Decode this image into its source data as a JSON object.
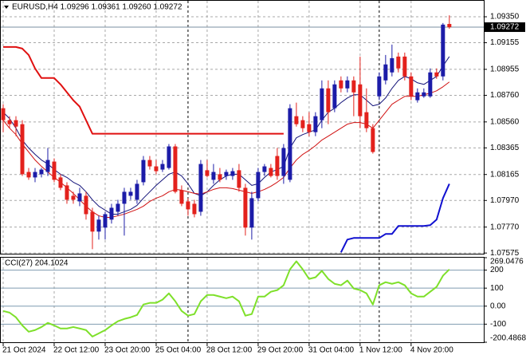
{
  "chart_data": [
    {
      "type": "candlestick",
      "title": "EURUSD,H4  1.09296 1.09361 1.09260 1.09272",
      "open": [
        1.08663,
        1.08573,
        1.08573,
        1.08543,
        1.08184,
        1.08143,
        1.08167,
        1.08184,
        1.08262,
        1.08143,
        1.08083,
        1.08005,
        1.07963,
        1.08005,
        1.07885,
        1.07736,
        1.07766,
        1.07826,
        1.07885,
        1.07945,
        1.08005,
        1.07975,
        1.08107,
        1.08274,
        1.08226,
        1.08202,
        1.08214,
        1.08376,
        1.08047,
        1.07963,
        1.07945,
        1.07885,
        1.08197,
        1.08125,
        1.08167,
        1.08154,
        1.08154,
        1.08197,
        1.08065,
        1.07766,
        1.07987,
        1.08184,
        1.08214,
        1.08304,
        1.08154,
        1.08125,
        1.08603,
        1.08573,
        1.08543,
        1.08483,
        1.08573,
        1.08812,
        1.08663,
        1.08872,
        1.08812,
        1.08872,
        1.08842,
        1.08633,
        1.08513,
        1.08752,
        1.08872,
        1.08932,
        1.09051,
        1.09051,
        1.08902,
        1.08723,
        1.08752,
        1.08752,
        1.08932,
        1.08902,
        1.09296
      ],
      "high": [
        1.08693,
        1.08603,
        1.08603,
        1.08573,
        1.08214,
        1.08214,
        1.08214,
        1.08364,
        1.08286,
        1.08167,
        1.08107,
        1.08035,
        1.08065,
        1.08035,
        1.07915,
        1.07855,
        1.07885,
        1.07945,
        1.07975,
        1.08065,
        1.08065,
        1.08125,
        1.08304,
        1.08304,
        1.08274,
        1.08274,
        1.08394,
        1.08394,
        1.08083,
        1.07987,
        1.07975,
        1.08274,
        1.08274,
        1.08244,
        1.08214,
        1.08202,
        1.08214,
        1.08244,
        1.08095,
        1.08035,
        1.08214,
        1.08244,
        1.08244,
        1.08364,
        1.08394,
        1.08693,
        1.08705,
        1.08603,
        1.08633,
        1.08633,
        1.08872,
        1.08872,
        1.08872,
        1.08902,
        1.08902,
        1.08902,
        1.09051,
        1.08812,
        1.08543,
        1.08932,
        1.09063,
        1.09141,
        1.09081,
        1.09081,
        1.08932,
        1.08812,
        1.08812,
        1.08962,
        1.08962,
        1.09303,
        1.09361
      ],
      "low": [
        1.08483,
        1.08513,
        1.08453,
        1.08154,
        1.08125,
        1.08107,
        1.08143,
        1.08154,
        1.08107,
        1.08047,
        1.07945,
        1.07945,
        1.07927,
        1.07826,
        1.07604,
        1.07676,
        1.07676,
        1.07796,
        1.07855,
        1.07706,
        1.07975,
        1.07945,
        1.08083,
        1.08202,
        1.08167,
        1.08184,
        1.08202,
        1.08023,
        1.07927,
        1.07855,
        1.07843,
        1.07855,
        1.08143,
        1.08095,
        1.08107,
        1.08125,
        1.08125,
        1.08035,
        1.07706,
        1.07676,
        1.07963,
        1.08154,
        1.08143,
        1.08125,
        1.08095,
        1.08107,
        1.08525,
        1.08483,
        1.08453,
        1.08453,
        1.08513,
        1.08543,
        1.08633,
        1.08782,
        1.08782,
        1.08603,
        1.08513,
        1.08483,
        1.08322,
        1.08723,
        1.08842,
        1.08902,
        1.08932,
        1.08872,
        1.08723,
        1.08705,
        1.08741,
        1.08741,
        1.08884,
        1.08872,
        1.0926
      ],
      "close": [
        1.08573,
        1.08543,
        1.08525,
        1.08167,
        1.08143,
        1.08184,
        1.08202,
        1.08274,
        1.08125,
        1.08065,
        1.07975,
        1.07975,
        1.08023,
        1.07867,
        1.07736,
        1.07826,
        1.07867,
        1.07915,
        1.07945,
        1.08035,
        1.08035,
        1.08095,
        1.08274,
        1.08226,
        1.0819,
        1.08244,
        1.08376,
        1.08035,
        1.07945,
        1.07903,
        1.07867,
        1.08244,
        1.08154,
        1.08184,
        1.08125,
        1.08184,
        1.0819,
        1.08065,
        1.07766,
        1.07987,
        1.08184,
        1.08226,
        1.08154,
        1.08154,
        1.08364,
        1.08663,
        1.08543,
        1.08513,
        1.08483,
        1.08603,
        1.08812,
        1.08633,
        1.08842,
        1.08812,
        1.08872,
        1.08782,
        1.08603,
        1.08513,
        1.08334,
        1.08902,
        1.08992,
        1.09039,
        1.08962,
        1.08902,
        1.08752,
        1.08782,
        1.08782,
        1.08932,
        1.08902,
        1.09291,
        1.09272
      ],
      "up_color": "#1c1ca8",
      "down_color": "#e3211c",
      "overlays": [
        {
          "color": "#14147a",
          "width": 1,
          "values": [
            1.08633,
            1.08585,
            1.08513,
            1.08424,
            1.08364,
            1.08316,
            1.08274,
            1.08244,
            1.08202,
            1.08167,
            1.08143,
            1.08107,
            1.08083,
            1.08035,
            1.07975,
            1.07927,
            1.07897,
            1.07867,
            1.07867,
            1.07885,
            1.07903,
            1.07933,
            1.07987,
            1.08035,
            1.08083,
            1.08125,
            1.08167,
            1.08184,
            1.08154,
            1.08095,
            1.08023,
            1.08005,
            1.08035,
            1.08083,
            1.08125,
            1.08154,
            1.08167,
            1.08167,
            1.08125,
            1.08083,
            1.08095,
            1.08143,
            1.08184,
            1.08202,
            1.08226,
            1.08364,
            1.08441,
            1.08465,
            1.08483,
            1.08501,
            1.08573,
            1.08633,
            1.08663,
            1.08705,
            1.0874,
            1.08764,
            1.08764,
            1.08723,
            1.08681,
            1.08693,
            1.0874,
            1.08812,
            1.08872,
            1.08902,
            1.08884,
            1.08854,
            1.08842,
            1.08872,
            1.08902,
            1.0898,
            1.09051
          ]
        },
        {
          "color": "#d01010",
          "width": 1,
          "values": [
            1.08573,
            1.08513,
            1.08465,
            1.08394,
            1.08334,
            1.08274,
            1.08226,
            1.08184,
            1.08143,
            1.08107,
            1.08065,
            1.08023,
            1.07975,
            1.07927,
            1.07885,
            1.07855,
            1.07843,
            1.07843,
            1.07855,
            1.07867,
            1.07885,
            1.07903,
            1.07927,
            1.07963,
            1.07987,
            1.08005,
            1.08035,
            1.08053,
            1.08047,
            1.08035,
            1.08023,
            1.08017,
            1.08035,
            1.08053,
            1.08065,
            1.08065,
            1.08059,
            1.08047,
            1.08035,
            1.08023,
            1.08035,
            1.08053,
            1.08077,
            1.08107,
            1.08143,
            1.08214,
            1.08274,
            1.08316,
            1.08346,
            1.08382,
            1.08424,
            1.08453,
            1.08483,
            1.08513,
            1.08543,
            1.08555,
            1.08555,
            1.08543,
            1.08513,
            1.08573,
            1.08633,
            1.08693,
            1.08723,
            1.08752,
            1.08752,
            1.08752,
            1.08764,
            1.08776,
            1.08794,
            1.08824,
            1.0886
          ]
        },
        {
          "color": "#e01010",
          "width": 2,
          "values": [
            1.09123,
            1.09123,
            1.09123,
            1.09111,
            1.09063,
            1.08962,
            1.0889,
            1.0889,
            1.0889,
            1.08842,
            1.08782,
            1.08723,
            1.08675,
            1.08573,
            1.08471,
            1.08471,
            1.08471,
            1.08471,
            1.08471,
            1.08471,
            1.08471,
            1.08471,
            1.08471,
            1.08471,
            1.08471,
            1.08471,
            1.08471,
            1.08471,
            1.08471,
            1.08471,
            1.08471,
            1.08471,
            1.08471,
            1.08471,
            1.08471,
            1.08471,
            1.08471,
            1.08471,
            1.08471,
            1.08471,
            1.08471,
            1.08471,
            1.08471,
            1.08471,
            1.08471,
            null,
            null,
            null,
            null,
            null,
            null,
            null,
            null,
            null,
            null,
            null,
            null,
            null,
            null,
            null,
            null,
            null,
            null,
            null,
            null,
            null,
            null,
            null,
            null,
            null,
            null
          ]
        },
        {
          "color": "#1010d0",
          "width": 2,
          "values": [
            null,
            null,
            null,
            null,
            null,
            null,
            null,
            null,
            null,
            null,
            null,
            null,
            null,
            null,
            null,
            null,
            null,
            null,
            null,
            null,
            null,
            null,
            null,
            null,
            null,
            null,
            null,
            null,
            null,
            null,
            null,
            null,
            null,
            null,
            null,
            null,
            null,
            null,
            null,
            null,
            null,
            null,
            null,
            null,
            null,
            null,
            null,
            null,
            null,
            null,
            null,
            null,
            null,
            1.0758,
            1.07676,
            1.07688,
            1.07688,
            1.07688,
            1.07688,
            1.07688,
            1.07718,
            1.07718,
            1.07778,
            1.07778,
            1.07778,
            1.07778,
            1.07778,
            1.07784,
            1.07826,
            1.07987,
            1.08095
          ]
        }
      ],
      "current_price": 1.09272,
      "xlim": [
        -0.5,
        75.4
      ],
      "xticks": [
        {
          "value": 0,
          "label": "21 Oct 2024"
        },
        {
          "value": 8,
          "label": "22 Oct 12:00"
        },
        {
          "value": 16,
          "label": "23 Oct 20:00"
        },
        {
          "value": 24,
          "label": "25 Oct 04:00"
        },
        {
          "value": 32,
          "label": "28 Oct 12:00"
        },
        {
          "value": 40,
          "label": "29 Oct 20:00"
        },
        {
          "value": 48,
          "label": "31 Oct 04:00"
        },
        {
          "value": 56,
          "label": "1 Nov 12:00"
        },
        {
          "value": 64,
          "label": "4 Nov 20:00"
        }
      ],
      "separators": [
        29,
        59
      ],
      "ylim": [
        1.0757,
        1.0947
      ],
      "yticks": [
        {
          "value": 1.0935,
          "label": "1.09350"
        },
        1.09155,
        1.08955,
        {
          "value": 1.0876,
          "label": "1.08760"
        },
        {
          "value": 1.0856,
          "label": "1.08560"
        },
        1.08365,
        1.08165,
        {
          "value": 1.0797,
          "label": "1.07970"
        },
        {
          "value": 1.0777,
          "label": "1.07770"
        },
        1.07575
      ],
      "grid": true
    },
    {
      "type": "line",
      "title": "CCI(27) 204.1024",
      "color": "#7ee02a",
      "values": [
        -27,
        -36,
        -62,
        -107,
        -142,
        -133,
        -116,
        -93,
        -107,
        -124,
        -124,
        -116,
        -124,
        -133,
        -169,
        -151,
        -133,
        -107,
        -84,
        -71,
        -62,
        -49,
        9,
        18,
        18,
        36,
        71,
        27,
        -27,
        -53,
        -44,
        27,
        62,
        62,
        53,
        44,
        53,
        27,
        -53,
        -44,
        53,
        53,
        80,
        89,
        116,
        204,
        249,
        204,
        151,
        160,
        196,
        151,
        124,
        116,
        142,
        98,
        89,
        71,
        9,
        116,
        133,
        124,
        133,
        116,
        71,
        53,
        53,
        80,
        107,
        169,
        204
      ],
      "ylim": [
        -200.4868,
        269.0476
      ],
      "yticks": [
        269.0476,
        200,
        100,
        {
          "value": 0,
          "label": "0.00"
        },
        -100,
        -200.4868
      ]
    }
  ]
}
